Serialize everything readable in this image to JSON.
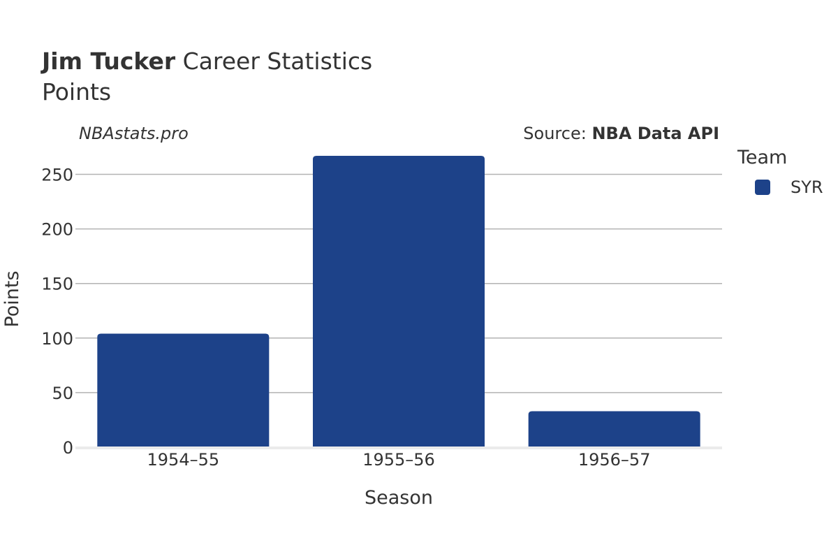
{
  "header": {
    "player": "Jim Tucker",
    "title_rest": " Career Statistics",
    "subtitle": "Points",
    "watermark": "NBAstats.pro",
    "source_prefix": "Source: ",
    "source_name": "NBA Data API"
  },
  "legend": {
    "title": "Team",
    "items": [
      {
        "label": "SYR",
        "color": "#1d4289"
      }
    ]
  },
  "chart_data": {
    "type": "bar",
    "categories": [
      "1954–55",
      "1955–56",
      "1956–57"
    ],
    "series": [
      {
        "name": "SYR",
        "values": [
          104,
          267,
          33
        ],
        "color": "#1d4289"
      }
    ],
    "xlabel": "Season",
    "ylabel": "Points",
    "ylim": [
      0,
      275
    ],
    "yticks": [
      0,
      50,
      100,
      150,
      200,
      250
    ],
    "grid": true
  }
}
